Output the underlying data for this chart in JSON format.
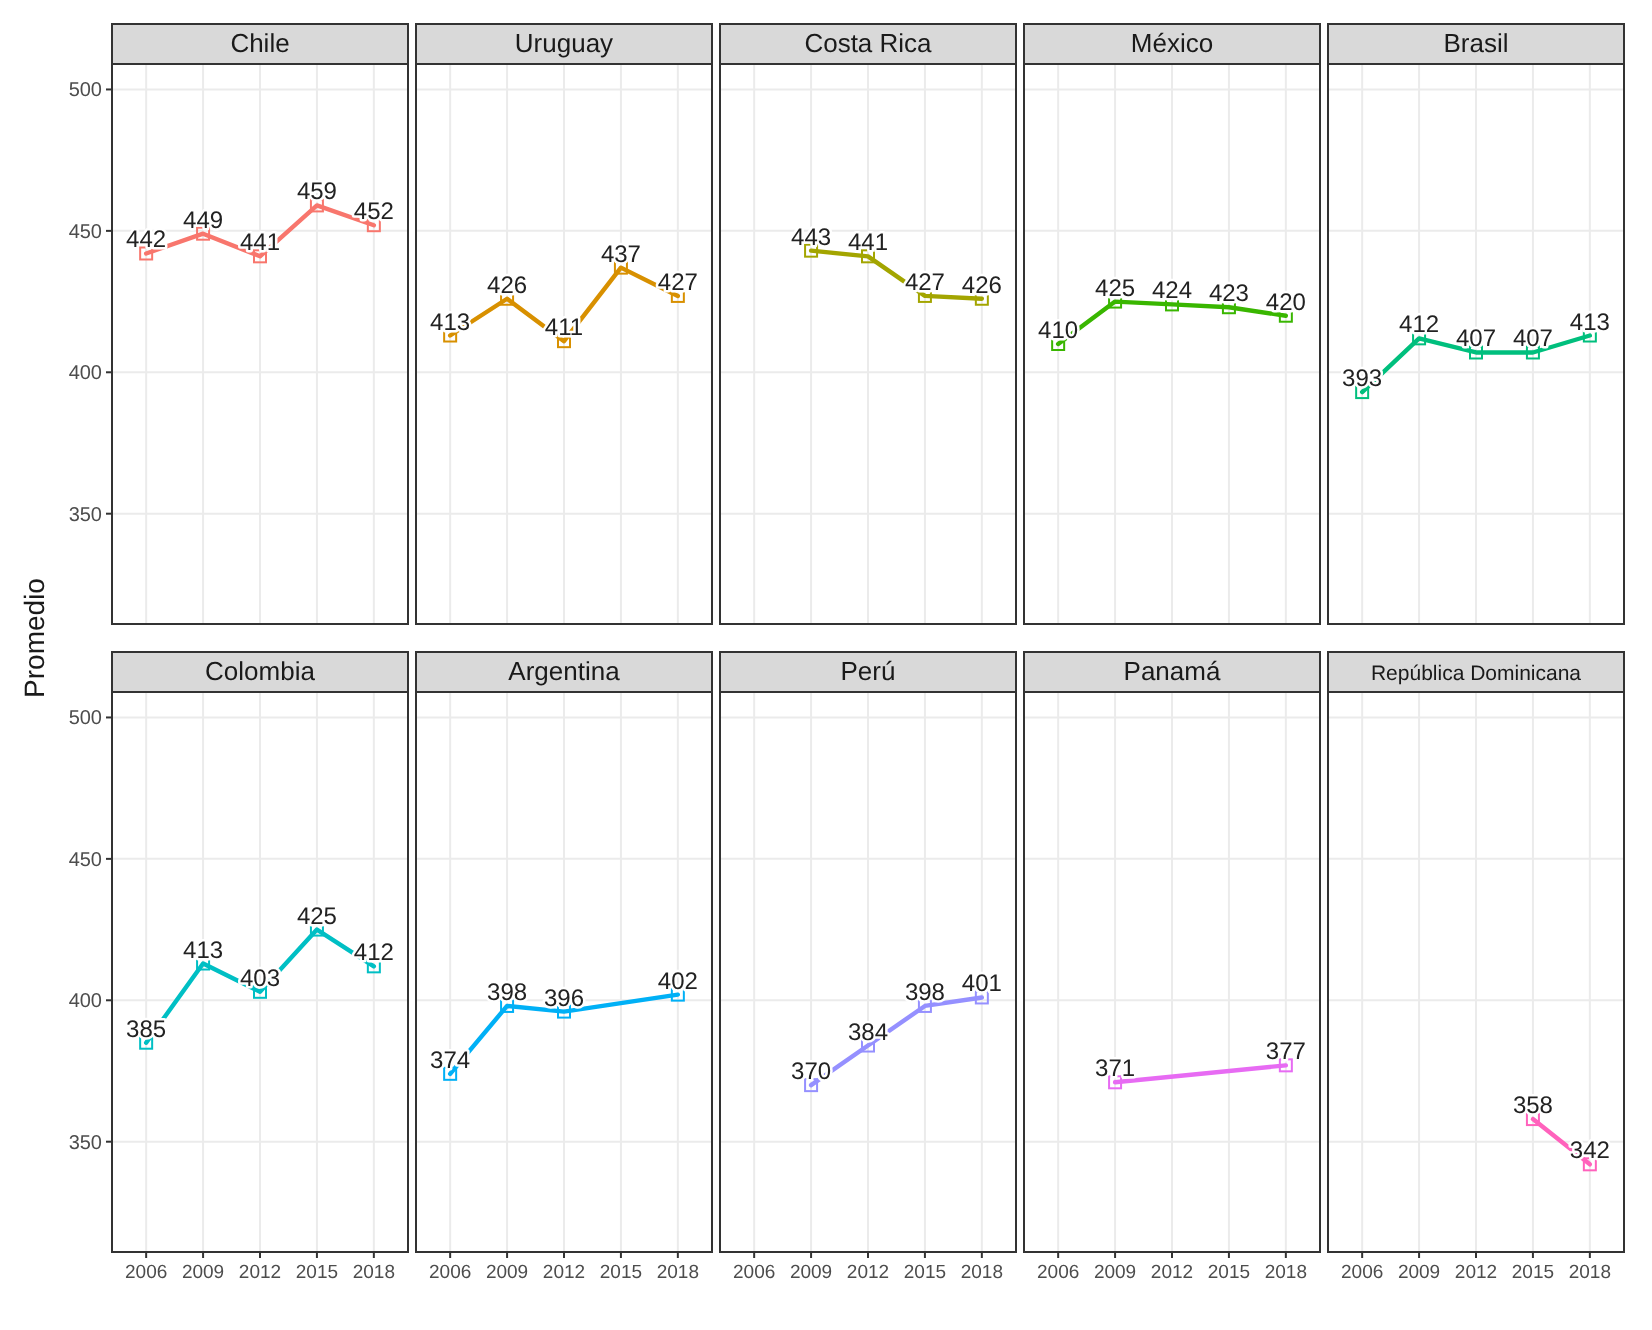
{
  "chart_data": [
    {
      "type": "line",
      "title": "Chile",
      "ylabel": "Promedio",
      "x": [
        2006,
        2009,
        2012,
        2015,
        2018
      ],
      "series": [
        {
          "color": "#f8766d",
          "values": [
            442,
            449,
            441,
            459,
            452
          ]
        }
      ],
      "xlim": [
        2004.2,
        2019.8
      ],
      "ylim": [
        311,
        509
      ],
      "xticks": [
        2006,
        2009,
        2012,
        2015,
        2018
      ],
      "yticks": [
        350,
        400,
        450,
        500
      ],
      "grid": true,
      "marker": "square",
      "data_labels": true,
      "tick_labels": "y"
    },
    {
      "type": "line",
      "title": "Uruguay",
      "x": [
        2006,
        2009,
        2012,
        2015,
        2018
      ],
      "series": [
        {
          "color": "#d89000",
          "values": [
            413,
            426,
            411,
            437,
            427
          ]
        }
      ],
      "xlim": [
        2004.2,
        2019.8
      ],
      "ylim": [
        311,
        509
      ],
      "xticks": [
        2006,
        2009,
        2012,
        2015,
        2018
      ],
      "yticks": [
        350,
        400,
        450,
        500
      ],
      "grid": true,
      "marker": "square",
      "data_labels": true,
      "tick_labels": false
    },
    {
      "type": "line",
      "title": "Costa Rica",
      "x": [
        2009,
        2012,
        2015,
        2018
      ],
      "series": [
        {
          "color": "#a3a500",
          "values": [
            443,
            441,
            427,
            426
          ]
        }
      ],
      "xlim": [
        2004.2,
        2019.8
      ],
      "ylim": [
        311,
        509
      ],
      "xticks": [
        2006,
        2009,
        2012,
        2015,
        2018
      ],
      "yticks": [
        350,
        400,
        450,
        500
      ],
      "grid": true,
      "marker": "square",
      "data_labels": true,
      "tick_labels": false
    },
    {
      "type": "line",
      "title": "México",
      "x": [
        2006,
        2009,
        2012,
        2015,
        2018
      ],
      "series": [
        {
          "color": "#39b600",
          "values": [
            410,
            425,
            424,
            423,
            420
          ]
        }
      ],
      "xlim": [
        2004.2,
        2019.8
      ],
      "ylim": [
        311,
        509
      ],
      "xticks": [
        2006,
        2009,
        2012,
        2015,
        2018
      ],
      "yticks": [
        350,
        400,
        450,
        500
      ],
      "grid": true,
      "marker": "square",
      "data_labels": true,
      "tick_labels": false
    },
    {
      "type": "line",
      "title": "Brasil",
      "x": [
        2006,
        2009,
        2012,
        2015,
        2018
      ],
      "series": [
        {
          "color": "#00bf7d",
          "values": [
            393,
            412,
            407,
            407,
            413
          ]
        }
      ],
      "xlim": [
        2004.2,
        2019.8
      ],
      "ylim": [
        311,
        509
      ],
      "xticks": [
        2006,
        2009,
        2012,
        2015,
        2018
      ],
      "yticks": [
        350,
        400,
        450,
        500
      ],
      "grid": true,
      "marker": "square",
      "data_labels": true,
      "tick_labels": false
    },
    {
      "type": "line",
      "title": "Colombia",
      "x": [
        2006,
        2009,
        2012,
        2015,
        2018
      ],
      "series": [
        {
          "color": "#00bfc4",
          "values": [
            385,
            413,
            403,
            425,
            412
          ]
        }
      ],
      "xlim": [
        2004.2,
        2019.8
      ],
      "ylim": [
        311,
        509
      ],
      "xticks": [
        2006,
        2009,
        2012,
        2015,
        2018
      ],
      "yticks": [
        350,
        400,
        450,
        500
      ],
      "grid": true,
      "marker": "square",
      "data_labels": true
    },
    {
      "type": "line",
      "title": "Argentina",
      "x": [
        2006,
        2009,
        2012,
        2018
      ],
      "series": [
        {
          "color": "#00b0f6",
          "values": [
            374,
            398,
            396,
            402
          ]
        }
      ],
      "xlim": [
        2004.2,
        2019.8
      ],
      "ylim": [
        311,
        509
      ],
      "xticks": [
        2006,
        2009,
        2012,
        2015,
        2018
      ],
      "yticks": [
        350,
        400,
        450,
        500
      ],
      "grid": true,
      "marker": "square",
      "data_labels": true,
      "tick_labels": "x"
    },
    {
      "type": "line",
      "title": "Perú",
      "x": [
        2009,
        2012,
        2015,
        2018
      ],
      "series": [
        {
          "color": "#9590ff",
          "values": [
            370,
            384,
            398,
            401
          ]
        }
      ],
      "xlim": [
        2004.2,
        2019.8
      ],
      "ylim": [
        311,
        509
      ],
      "xticks": [
        2006,
        2009,
        2012,
        2015,
        2018
      ],
      "yticks": [
        350,
        400,
        450,
        500
      ],
      "grid": true,
      "marker": "square",
      "data_labels": true,
      "tick_labels": "x"
    },
    {
      "type": "line",
      "title": "Panamá",
      "x": [
        2009,
        2018
      ],
      "series": [
        {
          "color": "#e76bf3",
          "values": [
            371,
            377
          ]
        }
      ],
      "xlim": [
        2004.2,
        2019.8
      ],
      "ylim": [
        311,
        509
      ],
      "xticks": [
        2006,
        2009,
        2012,
        2015,
        2018
      ],
      "yticks": [
        350,
        400,
        450,
        500
      ],
      "grid": true,
      "marker": "square",
      "data_labels": true,
      "tick_labels": "x"
    },
    {
      "type": "line",
      "title": "República Dominicana",
      "x": [
        2015,
        2018
      ],
      "series": [
        {
          "color": "#ff62bc",
          "values": [
            358,
            342
          ]
        }
      ],
      "xlim": [
        2004.2,
        2019.8
      ],
      "ylim": [
        311,
        509
      ],
      "xticks": [
        2006,
        2009,
        2012,
        2015,
        2018
      ],
      "yticks": [
        350,
        400,
        450,
        500
      ],
      "grid": true,
      "marker": "square",
      "data_labels": true,
      "tick_labels": "x"
    }
  ]
}
